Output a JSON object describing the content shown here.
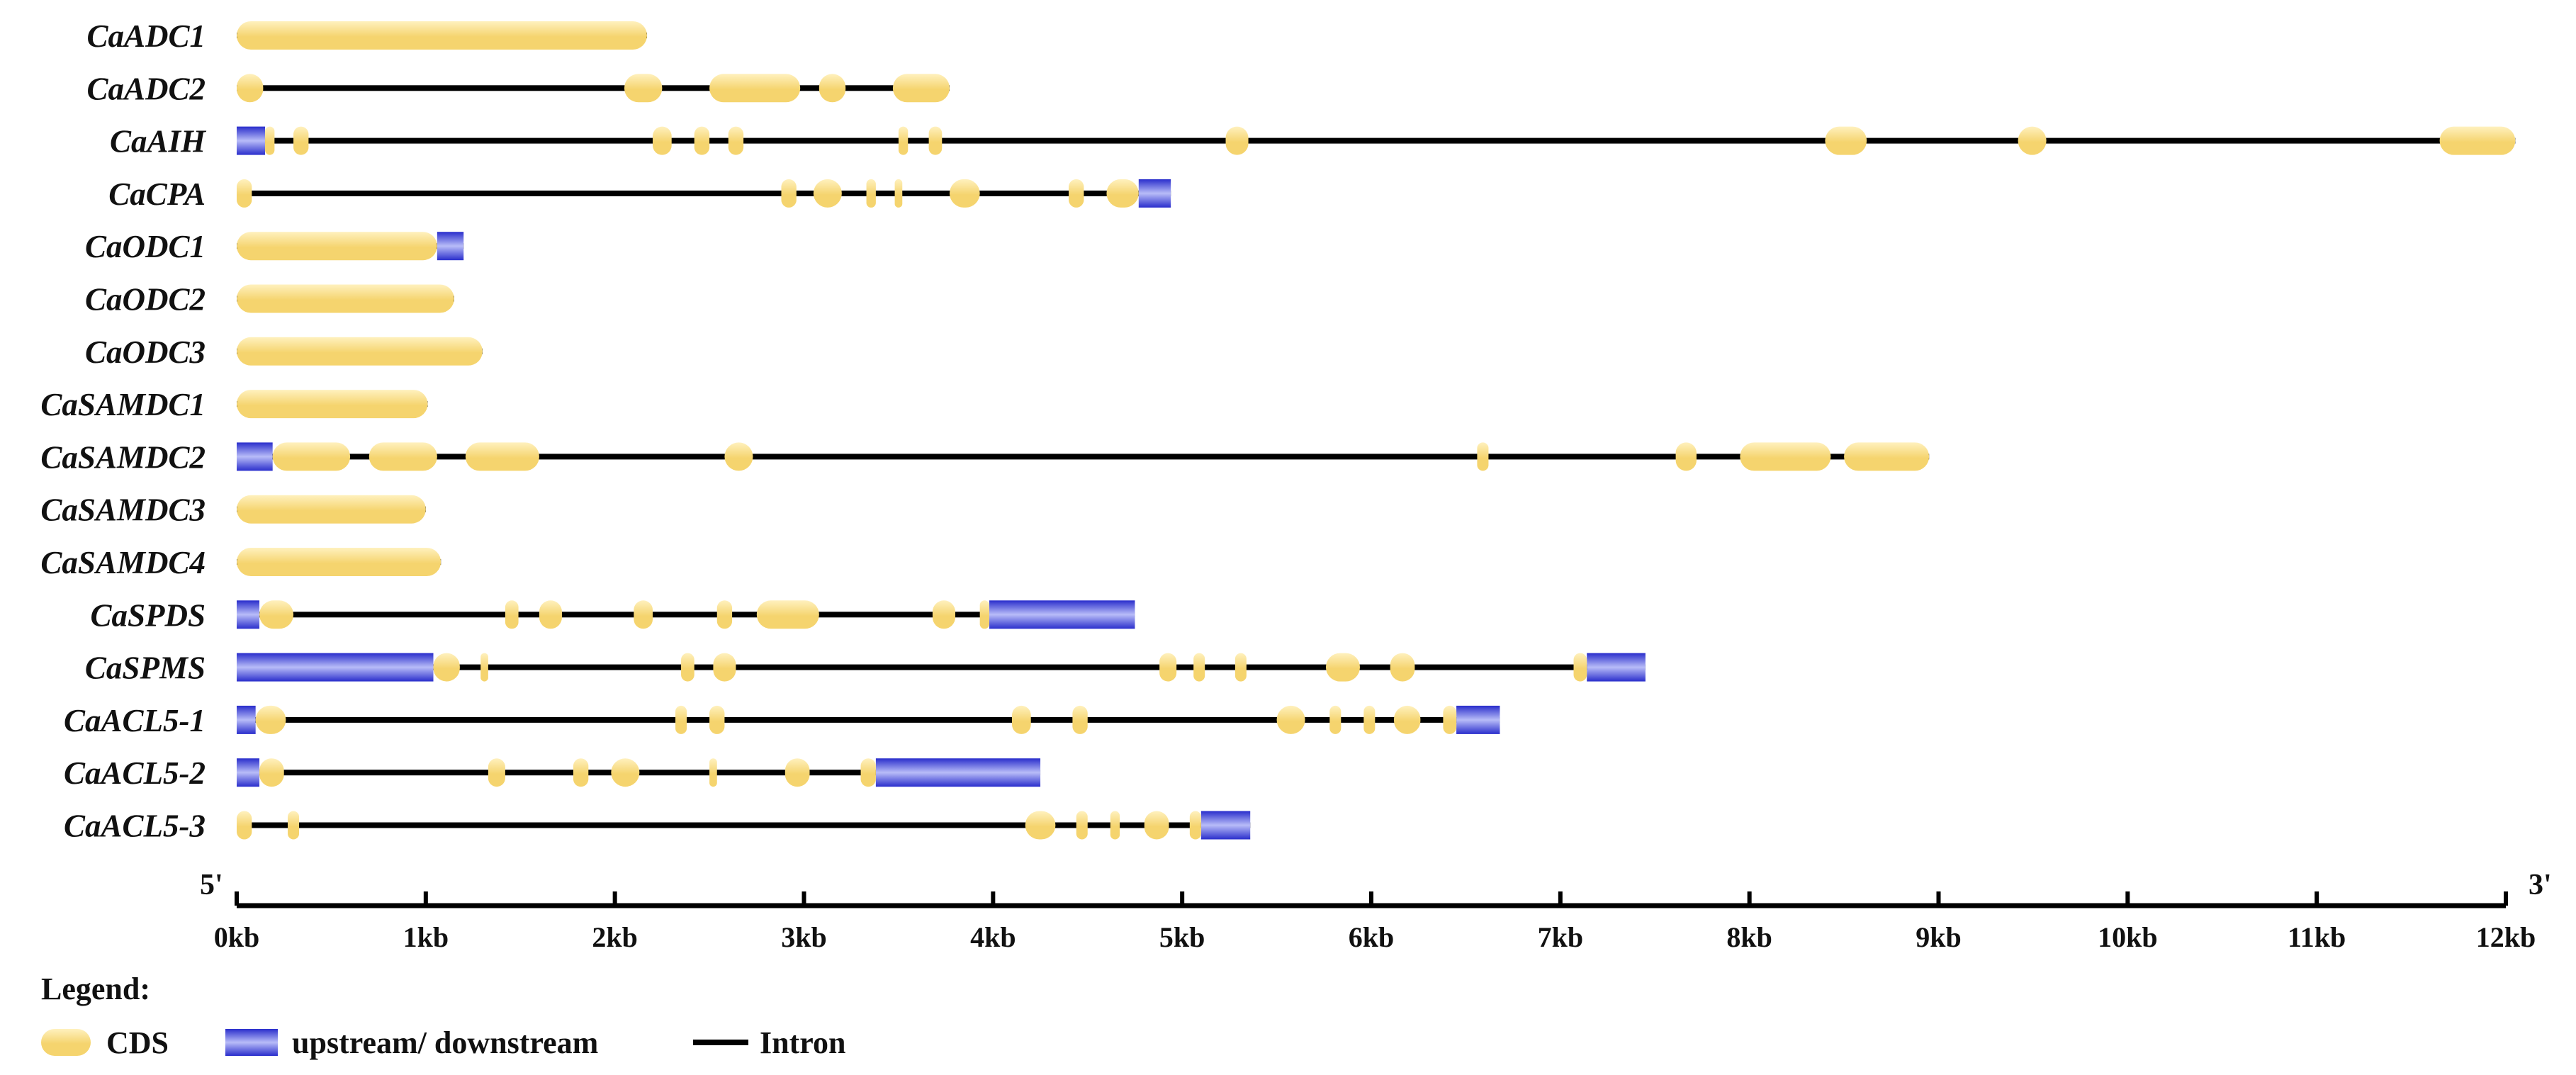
{
  "legend": {
    "title": "Legend:",
    "cds_label": "CDS",
    "utr_label": "upstream/ downstream",
    "intron_label": "Intron"
  },
  "axis": {
    "start_label": "5'",
    "end_label": "3'",
    "max_kb": 12,
    "ticks": [
      "0kb",
      "1kb",
      "2kb",
      "3kb",
      "4kb",
      "5kb",
      "6kb",
      "7kb",
      "8kb",
      "9kb",
      "10kb",
      "11kb",
      "12kb"
    ]
  },
  "colors": {
    "cds": "#F5D46E",
    "cds_light": "#FFF1BE",
    "utr": "#2A2ECC",
    "utr_light": "#B8BCF8",
    "intron": "#000000"
  },
  "chart_data": {
    "type": "gene-structure",
    "units": "kb",
    "genes": [
      {
        "name": "CaADC1",
        "length": 2.17,
        "upstream": null,
        "downstream": null,
        "cds": [
          [
            0.0,
            2.17
          ]
        ]
      },
      {
        "name": "CaADC2",
        "length": 3.77,
        "upstream": null,
        "downstream": null,
        "cds": [
          [
            0.0,
            0.14
          ],
          [
            2.05,
            2.25
          ],
          [
            2.5,
            2.98
          ],
          [
            3.08,
            3.22
          ],
          [
            3.47,
            3.77
          ]
        ]
      },
      {
        "name": "CaAIH",
        "length": 12.05,
        "upstream": [
          0.0,
          0.15
        ],
        "downstream": null,
        "cds": [
          [
            0.15,
            0.2
          ],
          [
            0.3,
            0.38
          ],
          [
            2.2,
            2.3
          ],
          [
            2.42,
            2.5
          ],
          [
            2.6,
            2.68
          ],
          [
            3.5,
            3.55
          ],
          [
            3.66,
            3.73
          ],
          [
            5.23,
            5.35
          ],
          [
            8.4,
            8.62
          ],
          [
            9.42,
            9.57
          ],
          [
            11.65,
            12.05
          ]
        ]
      },
      {
        "name": "CaCPA",
        "length": 4.94,
        "upstream": null,
        "downstream": [
          4.77,
          4.94
        ],
        "cds": [
          [
            0.0,
            0.08
          ],
          [
            2.88,
            2.96
          ],
          [
            3.05,
            3.2
          ],
          [
            3.33,
            3.38
          ],
          [
            3.48,
            3.52
          ],
          [
            3.77,
            3.93
          ],
          [
            4.4,
            4.48
          ],
          [
            4.6,
            4.77
          ]
        ]
      },
      {
        "name": "CaODC1",
        "length": 1.2,
        "upstream": null,
        "downstream": [
          1.06,
          1.2
        ],
        "cds": [
          [
            0.0,
            1.06
          ]
        ]
      },
      {
        "name": "CaODC2",
        "length": 1.15,
        "upstream": null,
        "downstream": null,
        "cds": [
          [
            0.0,
            1.15
          ]
        ]
      },
      {
        "name": "CaODC3",
        "length": 1.3,
        "upstream": null,
        "downstream": null,
        "cds": [
          [
            0.0,
            1.3
          ]
        ]
      },
      {
        "name": "CaSAMDC1",
        "length": 1.01,
        "upstream": null,
        "downstream": null,
        "cds": [
          [
            0.0,
            1.01
          ]
        ]
      },
      {
        "name": "CaSAMDC2",
        "length": 8.95,
        "upstream": [
          0.0,
          0.19
        ],
        "downstream": null,
        "cds": [
          [
            0.19,
            0.6
          ],
          [
            0.7,
            1.06
          ],
          [
            1.21,
            1.6
          ],
          [
            2.58,
            2.73
          ],
          [
            6.56,
            6.62
          ],
          [
            7.61,
            7.72
          ],
          [
            7.95,
            8.43
          ],
          [
            8.5,
            8.95
          ]
        ]
      },
      {
        "name": "CaSAMDC3",
        "length": 1.0,
        "upstream": null,
        "downstream": null,
        "cds": [
          [
            0.0,
            1.0
          ]
        ]
      },
      {
        "name": "CaSAMDC4",
        "length": 1.08,
        "upstream": null,
        "downstream": null,
        "cds": [
          [
            0.0,
            1.08
          ]
        ]
      },
      {
        "name": "CaSPDS",
        "length": 4.75,
        "upstream": [
          0.0,
          0.12
        ],
        "downstream": [
          3.98,
          4.75
        ],
        "cds": [
          [
            0.12,
            0.3
          ],
          [
            1.42,
            1.49
          ],
          [
            1.6,
            1.72
          ],
          [
            2.1,
            2.2
          ],
          [
            2.54,
            2.62
          ],
          [
            2.75,
            3.08
          ],
          [
            3.68,
            3.8
          ],
          [
            3.93,
            3.98
          ]
        ]
      },
      {
        "name": "CaSPMS",
        "length": 7.45,
        "upstream": [
          0.0,
          1.04
        ],
        "downstream": [
          7.14,
          7.45
        ],
        "cds": [
          [
            1.04,
            1.18
          ],
          [
            1.29,
            1.33
          ],
          [
            2.35,
            2.42
          ],
          [
            2.52,
            2.64
          ],
          [
            4.88,
            4.97
          ],
          [
            5.06,
            5.12
          ],
          [
            5.28,
            5.34
          ],
          [
            5.76,
            5.94
          ],
          [
            6.1,
            6.23
          ],
          [
            7.07,
            7.14
          ]
        ]
      },
      {
        "name": "CaACL5-1",
        "length": 6.68,
        "upstream": [
          0.0,
          0.1
        ],
        "downstream": [
          6.45,
          6.68
        ],
        "cds": [
          [
            0.1,
            0.26
          ],
          [
            2.32,
            2.38
          ],
          [
            2.5,
            2.58
          ],
          [
            4.1,
            4.2
          ],
          [
            4.42,
            4.5
          ],
          [
            5.5,
            5.65
          ],
          [
            5.78,
            5.84
          ],
          [
            5.96,
            6.02
          ],
          [
            6.12,
            6.26
          ],
          [
            6.38,
            6.45
          ]
        ]
      },
      {
        "name": "CaACL5-2",
        "length": 4.25,
        "upstream": [
          0.0,
          0.12
        ],
        "downstream": [
          3.38,
          4.25
        ],
        "cds": [
          [
            0.12,
            0.25
          ],
          [
            1.33,
            1.42
          ],
          [
            1.78,
            1.86
          ],
          [
            1.98,
            2.13
          ],
          [
            2.5,
            2.54
          ],
          [
            2.9,
            3.03
          ],
          [
            3.3,
            3.38
          ]
        ]
      },
      {
        "name": "CaACL5-3",
        "length": 5.36,
        "upstream": null,
        "downstream": [
          5.1,
          5.36
        ],
        "cds": [
          [
            0.0,
            0.08
          ],
          [
            0.27,
            0.33
          ],
          [
            4.17,
            4.33
          ],
          [
            4.44,
            4.5
          ],
          [
            4.62,
            4.67
          ],
          [
            4.8,
            4.93
          ],
          [
            5.04,
            5.1
          ]
        ]
      }
    ]
  }
}
